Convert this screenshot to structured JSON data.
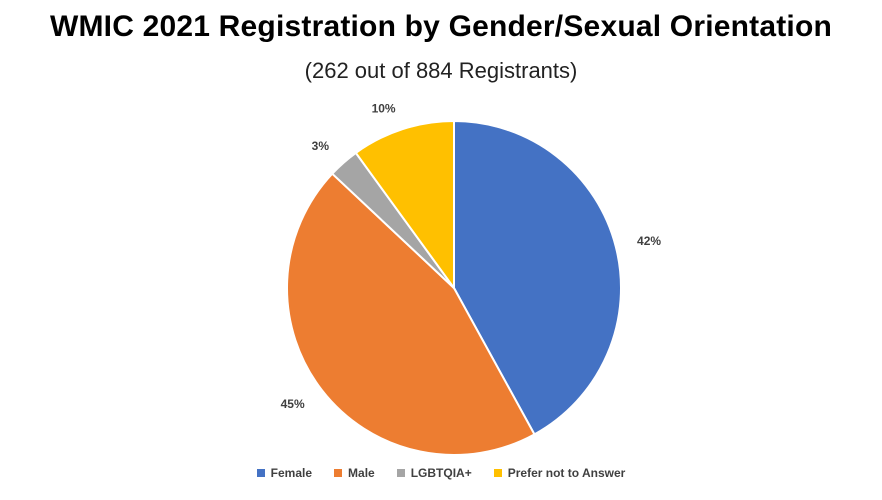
{
  "chart_data": {
    "type": "pie",
    "title": "WMIC 2021 Registration by Gender/Sexual Orientation",
    "subtitle": "(262 out of 884 Registrants)",
    "slices": [
      {
        "name": "Female",
        "value": 42,
        "label": "42%",
        "color": "#4472C4"
      },
      {
        "name": "Male",
        "value": 45,
        "label": "45%",
        "color": "#ED7D31"
      },
      {
        "name": "LGBTQIA+",
        "value": 3,
        "label": "3%",
        "color": "#A5A5A5"
      },
      {
        "name": "Prefer not to Answer",
        "value": 10,
        "label": "10%",
        "color": "#FFC000"
      }
    ],
    "legend_position": "bottom"
  }
}
